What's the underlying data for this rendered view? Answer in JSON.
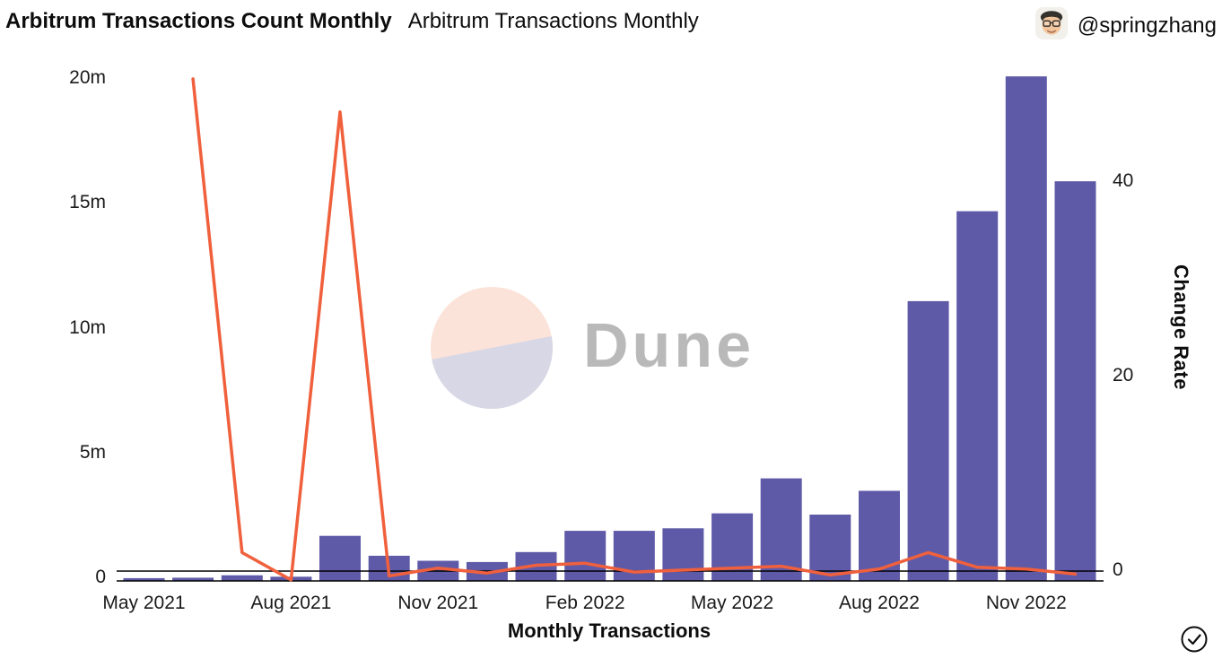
{
  "header": {
    "title_bold": "Arbitrum Transactions Count Monthly",
    "title_regular": "Arbitrum Transactions Monthly",
    "author_handle": "@springzhang",
    "avatar_icon": "author-avatar-icon"
  },
  "watermark": {
    "label": "Dune",
    "logo_icon": "dune-logo-icon"
  },
  "footer": {
    "verified_icon": "check-circle-icon"
  },
  "colors": {
    "bar": "#5f5aa7",
    "line": "#f0603c",
    "axis": "#000000",
    "text": "#1a1a1a",
    "watermark_top": "#fbe3d9",
    "watermark_bottom": "#d7d7e6",
    "watermark_text": "#b9b9b9"
  },
  "chart_data": {
    "type": "bar",
    "title": "Arbitrum Transactions Count Monthly",
    "subtitle": "Arbitrum Transactions Monthly",
    "x_axis_label": "Monthly Transactions",
    "y_right_label": "Change Rate",
    "y_left_unit": "millions of transactions",
    "grid": false,
    "legend": false,
    "categories": [
      "May 2021",
      "Jun 2021",
      "Jul 2021",
      "Aug 2021",
      "Sep 2021",
      "Oct 2021",
      "Nov 2021",
      "Dec 2021",
      "Jan 2022",
      "Feb 2022",
      "Mar 2022",
      "Apr 2022",
      "May 2022",
      "Jun 2022",
      "Jul 2022",
      "Aug 2022",
      "Sep 2022",
      "Oct 2022",
      "Nov 2022",
      "Dec 2022"
    ],
    "series": [
      {
        "name": "Monthly Transactions",
        "type": "bar",
        "axis": "left",
        "unit": "m",
        "values": [
          0.002,
          0.02,
          0.12,
          0.06,
          1.7,
          0.9,
          0.7,
          0.65,
          1.05,
          1.9,
          1.9,
          2.0,
          2.6,
          4.0,
          2.55,
          3.5,
          11.1,
          14.7,
          20.1,
          15.9
        ]
      },
      {
        "name": "Change Rate",
        "type": "line",
        "axis": "right",
        "values": [
          null,
          50.6,
          1.9,
          -0.9,
          47.2,
          -0.5,
          0.3,
          -0.2,
          0.6,
          0.8,
          -0.1,
          0.1,
          0.3,
          0.5,
          -0.4,
          0.2,
          1.9,
          0.4,
          0.2,
          -0.3
        ]
      }
    ],
    "y_left_ticks": [
      {
        "label": "20m",
        "value": 20
      },
      {
        "label": "15m",
        "value": 15
      },
      {
        "label": "10m",
        "value": 10
      },
      {
        "label": "5m",
        "value": 5
      },
      {
        "label": "0",
        "value": 0
      }
    ],
    "y_right_ticks": [
      {
        "label": "40",
        "value": 40
      },
      {
        "label": "20",
        "value": 20
      },
      {
        "label": "0",
        "value": 0
      }
    ],
    "x_ticks": [
      {
        "label": "May 2021",
        "index": 0
      },
      {
        "label": "Aug 2021",
        "index": 3
      },
      {
        "label": "Nov 2021",
        "index": 6
      },
      {
        "label": "Feb 2022",
        "index": 9
      },
      {
        "label": "May 2022",
        "index": 12
      },
      {
        "label": "Aug 2022",
        "index": 15
      },
      {
        "label": "Nov 2022",
        "index": 18
      }
    ],
    "y_left_range": [
      0,
      20.4
    ],
    "y_right_range": [
      -1.5,
      51
    ]
  }
}
